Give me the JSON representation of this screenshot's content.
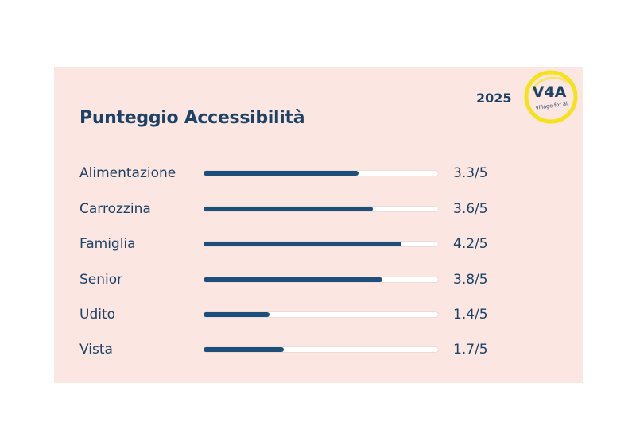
{
  "header": {
    "year": "2025",
    "title": "Punteggio Accessibilità"
  },
  "logo": {
    "mark": "V4A",
    "tagline": "village for all",
    "ring_color": "#f5e21a",
    "text_color": "#1d4266"
  },
  "scores": [
    {
      "label": "Alimentazione",
      "value": 3.3,
      "display": "3.3/5"
    },
    {
      "label": "Carrozzina",
      "value": 3.6,
      "display": "3.6/5"
    },
    {
      "label": "Famiglia",
      "value": 4.2,
      "display": "4.2/5"
    },
    {
      "label": "Senior",
      "value": 3.8,
      "display": "3.8/5"
    },
    {
      "label": "Udito",
      "value": 1.4,
      "display": "1.4/5"
    },
    {
      "label": "Vista",
      "value": 1.7,
      "display": "1.7/5"
    }
  ],
  "max_score": 5,
  "colors": {
    "background": "#fbe6e1",
    "bar_fill": "#1e4f7a",
    "bar_track": "#ffffff",
    "text": "#1d4266"
  }
}
